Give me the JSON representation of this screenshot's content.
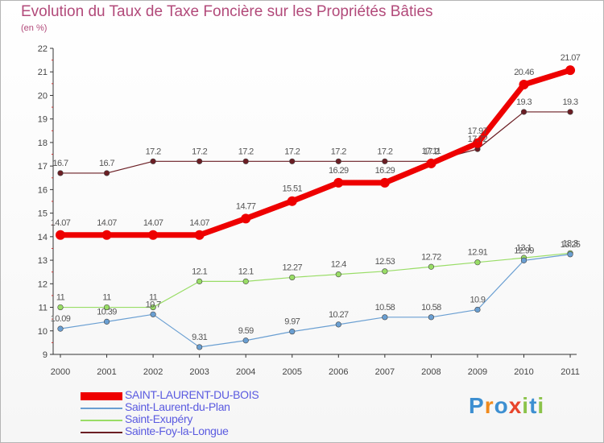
{
  "title": "Evolution du Taux de Taxe Foncière sur les Propriétés Bâties",
  "subtitle": "(en %)",
  "logo": {
    "text": "Proxiti",
    "letters": [
      "P",
      "r",
      "o",
      "x",
      "i",
      "t",
      "i"
    ],
    "colors": [
      "#3d8fd1",
      "#f08a1c",
      "#3d8fd1",
      "#e8452c",
      "#8bc34a",
      "#3d8fd1",
      "#8bc34a"
    ]
  },
  "chart_data": {
    "type": "line",
    "title": "Evolution du Taux de Taxe Foncière sur les Propriétés Bâties",
    "ylabel": "(en %)",
    "xlabel": "",
    "x": [
      "2000",
      "2001",
      "2002",
      "2003",
      "2004",
      "2005",
      "2006",
      "2007",
      "2008",
      "2009",
      "2010",
      "2011"
    ],
    "ylim": [
      9,
      22
    ],
    "yticks": [
      9,
      10,
      11,
      12,
      13,
      14,
      15,
      16,
      17,
      18,
      19,
      20,
      21,
      22
    ],
    "grid": false,
    "series": [
      {
        "name": "Sainte-Foy-la-Longue",
        "color": "#6b1e24",
        "width": 1.2,
        "values": [
          16.7,
          16.7,
          17.2,
          17.2,
          17.2,
          17.2,
          17.2,
          17.2,
          17.2,
          17.72,
          19.3,
          19.3
        ],
        "labels": [
          "16.7",
          "16.7",
          "17.2",
          "17.2",
          "17.2",
          "17.2",
          "17.2",
          "17.2",
          "17.2",
          "17.72",
          "19.3",
          "19.3"
        ]
      },
      {
        "name": "Saint-Exupéry",
        "color": "#99dd66",
        "width": 1.2,
        "values": [
          11,
          11,
          11,
          12.1,
          12.1,
          12.27,
          12.4,
          12.53,
          12.72,
          12.91,
          13.1,
          13.3
        ],
        "labels": [
          "11",
          "11",
          "11",
          "12.1",
          "12.1",
          "12.27",
          "12.4",
          "12.53",
          "12.72",
          "12.91",
          "13.1",
          "13.3"
        ]
      },
      {
        "name": "Saint-Laurent-du-Plan",
        "color": "#6a9fd2",
        "width": 1.2,
        "values": [
          10.09,
          10.39,
          10.7,
          9.31,
          9.59,
          9.97,
          10.27,
          10.58,
          10.58,
          10.9,
          12.99,
          13.25
        ],
        "labels": [
          "10.09",
          "10.39",
          "10.7",
          "9.31",
          "9.59",
          "9.97",
          "10.27",
          "10.58",
          "10.58",
          "10.9",
          "12.99",
          "13.25"
        ]
      },
      {
        "name": "SAINT-LAURENT-DU-BOIS",
        "color": "#ee0000",
        "width": 7,
        "values": [
          14.07,
          14.07,
          14.07,
          14.07,
          14.77,
          15.51,
          16.29,
          16.29,
          17.11,
          17.97,
          20.46,
          21.07
        ],
        "labels": [
          "14.07",
          "14.07",
          "14.07",
          "14.07",
          "14.77",
          "15.51",
          "16.29",
          "16.29",
          "17.11",
          "17.97",
          "20.46",
          "21.07"
        ]
      }
    ],
    "legend": {
      "placement": "bottom-left",
      "entries": [
        {
          "name": "SAINT-LAURENT-DU-BOIS",
          "color": "#ee0000"
        },
        {
          "name": "Saint-Laurent-du-Plan",
          "color": "#6a9fd2"
        },
        {
          "name": "Saint-Exupéry",
          "color": "#99dd66"
        },
        {
          "name": "Sainte-Foy-la-Longue",
          "color": "#6b1e24"
        }
      ]
    }
  }
}
